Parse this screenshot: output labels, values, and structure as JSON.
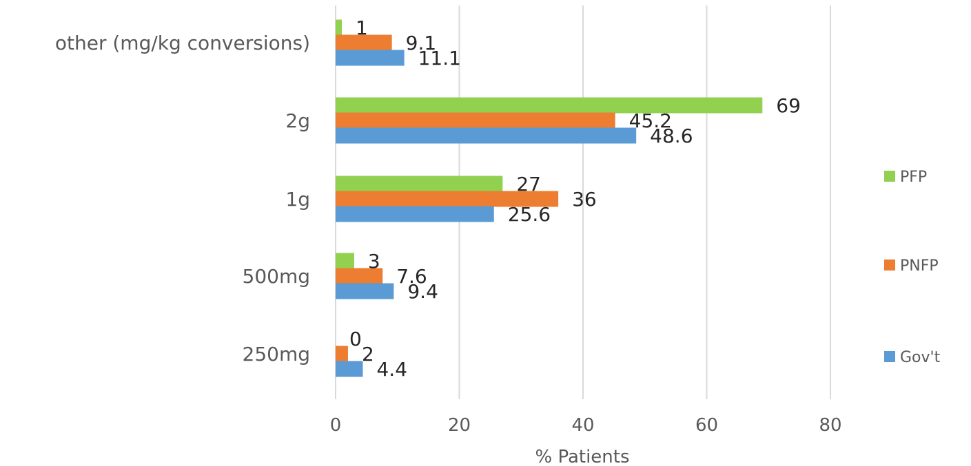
{
  "chart_data": {
    "type": "bar",
    "orientation": "horizontal",
    "categories": [
      "other (mg/kg conversions)",
      "2g",
      "1g",
      "500mg",
      "250mg"
    ],
    "series": [
      {
        "name": "PFP",
        "color": "#92d050",
        "values": [
          1,
          69,
          27,
          3,
          0
        ]
      },
      {
        "name": "PNFP",
        "color": "#ed7d31",
        "values": [
          9.1,
          45.2,
          36,
          7.6,
          2
        ]
      },
      {
        "name": "Gov't",
        "color": "#5b9bd5",
        "values": [
          11.1,
          48.6,
          25.6,
          9.4,
          4.4
        ]
      }
    ],
    "data_labels": [
      [
        "1",
        "69",
        "27",
        "3",
        "0"
      ],
      [
        "9.1",
        "45.2",
        "36",
        "7.6",
        "2"
      ],
      [
        "11.1",
        "48.6",
        "25.6",
        "9.4",
        "4.4"
      ]
    ],
    "xlabel": "% Patients",
    "ylabel": "",
    "xlim": [
      0,
      80
    ],
    "xticks": [
      0,
      20,
      40,
      60,
      80
    ],
    "xtick_labels": [
      "0",
      "20",
      "40",
      "60",
      "80"
    ],
    "grid": true,
    "legend_position": "right"
  }
}
